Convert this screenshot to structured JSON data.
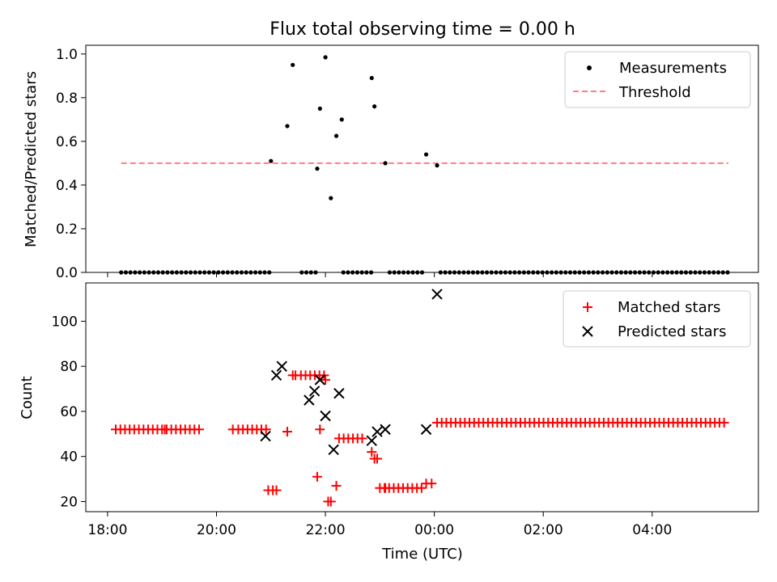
{
  "chart_data": [
    {
      "type": "scatter",
      "title": "Flux total observing time = 0.00 h",
      "xlabel": "",
      "ylabel": "Matched/Predicted stars",
      "ylim": [
        0,
        1.04
      ],
      "yticks": [
        0.0,
        0.2,
        0.4,
        0.6,
        0.8,
        1.0
      ],
      "ytick_labels": [
        "0.0",
        "0.2",
        "0.4",
        "0.6",
        "0.8",
        "1.0"
      ],
      "xlim_hours": [
        17.6,
        29.95
      ],
      "legend_position": "top-right",
      "legend": [
        "Measurements",
        "Threshold"
      ],
      "threshold": {
        "name": "Threshold",
        "value": 0.5,
        "x_start": 18.25,
        "x_end": 29.4,
        "color": "#ff7f7f"
      },
      "measurements": [
        [
          21.0,
          0.51
        ],
        [
          21.3,
          0.67
        ],
        [
          21.4,
          0.95
        ],
        [
          21.85,
          0.475
        ],
        [
          21.9,
          0.75
        ],
        [
          22.0,
          0.985
        ],
        [
          22.1,
          0.34
        ],
        [
          22.2,
          0.625
        ],
        [
          22.3,
          0.7
        ],
        [
          22.85,
          0.89
        ],
        [
          22.9,
          0.76
        ],
        [
          23.1,
          0.5
        ],
        [
          23.85,
          0.54
        ],
        [
          24.05,
          0.49
        ]
      ],
      "zero_series": {
        "x_start": 18.25,
        "x_end": 29.4,
        "x_step": 0.085,
        "value": 0.0,
        "gaps": [
          [
            21.0,
            21.55
          ],
          [
            21.85,
            22.1
          ],
          [
            22.15,
            22.3
          ],
          [
            22.85,
            23.1
          ],
          [
            23.85,
            23.97
          ],
          [
            23.97,
            24.05
          ]
        ]
      }
    },
    {
      "type": "scatter",
      "title": "",
      "xlabel": "Time (UTC)",
      "ylabel": "Count",
      "ylim": [
        15.5,
        117
      ],
      "yticks": [
        20,
        40,
        60,
        80,
        100
      ],
      "ytick_labels": [
        "20",
        "40",
        "60",
        "80",
        "100"
      ],
      "xlim_hours": [
        17.6,
        29.95
      ],
      "xticks_hours": [
        18,
        20,
        22,
        24,
        26,
        28
      ],
      "xtick_labels": [
        "18:00",
        "20:00",
        "22:00",
        "00:00",
        "02:00",
        "04:00"
      ],
      "legend_position": "top-right",
      "legend": [
        "Matched stars",
        "Predicted stars"
      ],
      "matched_color": "#ff0000",
      "predicted_color": "#000000",
      "matched_runs": [
        {
          "x_start": 18.15,
          "x_end": 19.75,
          "value": 52
        },
        {
          "x_start": 20.4,
          "x_end": 20.95,
          "value": 52
        },
        {
          "x_start": 20.95,
          "x_end": 21.1,
          "value": 25
        },
        {
          "x_start": 21.55,
          "x_end": 22.05,
          "value": 76
        },
        {
          "x_start": 22.25,
          "x_end": 22.75,
          "value": 48
        },
        {
          "x_start": 23.0,
          "x_end": 23.8,
          "value": 26
        },
        {
          "x_start": 24.05,
          "x_end": 29.4,
          "value": 55
        }
      ],
      "matched_points": [
        [
          19.05,
          52
        ],
        [
          20.3,
          52
        ],
        [
          21.1,
          25
        ],
        [
          21.3,
          51
        ],
        [
          21.4,
          76
        ],
        [
          21.45,
          76
        ],
        [
          21.85,
          31
        ],
        [
          21.9,
          52
        ],
        [
          22.0,
          74
        ],
        [
          22.05,
          20
        ],
        [
          22.1,
          20
        ],
        [
          22.2,
          27
        ],
        [
          22.85,
          42
        ],
        [
          22.9,
          39
        ],
        [
          22.95,
          39
        ],
        [
          23.1,
          26
        ],
        [
          23.85,
          28
        ],
        [
          23.95,
          28
        ]
      ],
      "predicted_points": [
        [
          20.9,
          49
        ],
        [
          21.1,
          76
        ],
        [
          21.2,
          80
        ],
        [
          21.7,
          65
        ],
        [
          21.8,
          69
        ],
        [
          21.9,
          74
        ],
        [
          22.0,
          58
        ],
        [
          22.15,
          43
        ],
        [
          22.25,
          68
        ],
        [
          22.85,
          47
        ],
        [
          22.95,
          51
        ],
        [
          23.1,
          52
        ],
        [
          23.85,
          52
        ],
        [
          24.05,
          112
        ]
      ]
    }
  ]
}
